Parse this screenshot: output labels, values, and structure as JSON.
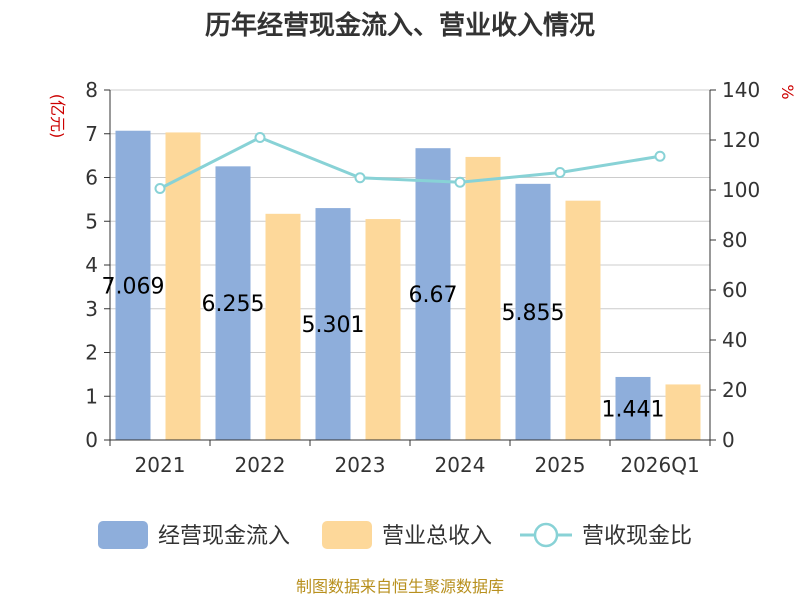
{
  "chart_data": {
    "type": "bar+line",
    "title": "历年经营现金流入、营业收入情况",
    "categories": [
      "2021",
      "2022",
      "2023",
      "2024",
      "2025",
      "2026Q1"
    ],
    "series": [
      {
        "name": "经营现金流入",
        "type": "bar",
        "axis": "left",
        "color": "#8eaedb",
        "values": [
          7.069,
          6.255,
          5.301,
          6.67,
          5.855,
          1.441
        ]
      },
      {
        "name": "营业总收入",
        "type": "bar",
        "axis": "left",
        "color": "#fdd89a",
        "values": [
          7.03,
          5.17,
          5.05,
          6.47,
          5.47,
          1.27
        ]
      },
      {
        "name": "营收现金比",
        "type": "line",
        "axis": "right",
        "color": "#88d2d6",
        "values": [
          100.6,
          121.0,
          104.9,
          103.1,
          107.0,
          113.5
        ]
      }
    ],
    "data_labels": [
      "7.069",
      "6.255",
      "5.301",
      "6.67",
      "5.855",
      "1.441"
    ],
    "y_left": {
      "unit": "(亿元)",
      "ylim": [
        0,
        8
      ],
      "ticks": [
        "0",
        "1",
        "2",
        "3",
        "4",
        "5",
        "6",
        "7",
        "8"
      ]
    },
    "y_right": {
      "unit": "%",
      "ylim": [
        0,
        140
      ],
      "ticks": [
        "0",
        "20",
        "40",
        "60",
        "80",
        "100",
        "120",
        "140"
      ]
    },
    "grid": true,
    "legend_position": "bottom",
    "source_text": "制图数据来自恒生聚源数据库"
  }
}
